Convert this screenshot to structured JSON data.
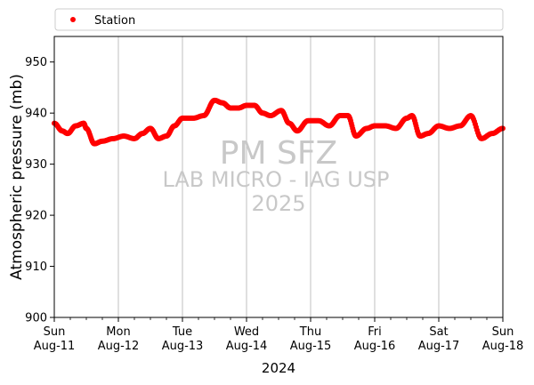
{
  "chart_data": {
    "type": "scatter",
    "title": "",
    "xlabel": "2024",
    "ylabel": "Atmospheric pressure (mb)",
    "ylim": [
      900,
      955
    ],
    "xlim": [
      "2024-08-11",
      "2024-08-18"
    ],
    "grid": "vertical-major",
    "legend": {
      "placement": "top",
      "entries": [
        "Station"
      ]
    },
    "x_ticks": [
      {
        "day": "Sun",
        "date": "Aug-11"
      },
      {
        "day": "Mon",
        "date": "Aug-12"
      },
      {
        "day": "Tue",
        "date": "Aug-13"
      },
      {
        "day": "Wed",
        "date": "Aug-14"
      },
      {
        "day": "Thu",
        "date": "Aug-15"
      },
      {
        "day": "Fri",
        "date": "Aug-16"
      },
      {
        "day": "Sat",
        "date": "Aug-17"
      },
      {
        "day": "Sun",
        "date": "Aug-18"
      }
    ],
    "y_ticks": [
      900,
      910,
      920,
      930,
      940,
      950
    ],
    "series": [
      {
        "name": "Station",
        "color": "#ff0000",
        "points": [
          [
            "2024-08-11 00:00",
            938.0
          ],
          [
            "2024-08-11 03:00",
            936.5
          ],
          [
            "2024-08-11 05:00",
            936.0
          ],
          [
            "2024-08-11 08:00",
            937.5
          ],
          [
            "2024-08-11 11:00",
            938.0
          ],
          [
            "2024-08-11 12:00",
            937.0
          ],
          [
            "2024-08-11 15:00",
            934.0
          ],
          [
            "2024-08-11 18:00",
            934.5
          ],
          [
            "2024-08-11 22:00",
            935.0
          ],
          [
            "2024-08-12 02:00",
            935.5
          ],
          [
            "2024-08-12 06:00",
            935.0
          ],
          [
            "2024-08-12 09:00",
            936.0
          ],
          [
            "2024-08-12 12:00",
            937.0
          ],
          [
            "2024-08-12 15:00",
            935.0
          ],
          [
            "2024-08-12 18:00",
            935.5
          ],
          [
            "2024-08-12 21:00",
            937.5
          ],
          [
            "2024-08-13 00:00",
            939.0
          ],
          [
            "2024-08-13 04:00",
            939.0
          ],
          [
            "2024-08-13 08:00",
            939.5
          ],
          [
            "2024-08-13 12:00",
            942.5
          ],
          [
            "2024-08-13 15:00",
            942.0
          ],
          [
            "2024-08-13 18:00",
            941.0
          ],
          [
            "2024-08-13 21:00",
            941.0
          ],
          [
            "2024-08-14 00:00",
            941.5
          ],
          [
            "2024-08-14 03:00",
            941.5
          ],
          [
            "2024-08-14 06:00",
            940.0
          ],
          [
            "2024-08-14 09:00",
            939.5
          ],
          [
            "2024-08-14 13:00",
            940.5
          ],
          [
            "2024-08-14 16:00",
            938.0
          ],
          [
            "2024-08-14 19:00",
            936.5
          ],
          [
            "2024-08-14 23:00",
            938.5
          ],
          [
            "2024-08-15 03:00",
            938.5
          ],
          [
            "2024-08-15 07:00",
            937.5
          ],
          [
            "2024-08-15 11:00",
            939.5
          ],
          [
            "2024-08-15 14:00",
            939.5
          ],
          [
            "2024-08-15 17:00",
            935.5
          ],
          [
            "2024-08-15 21:00",
            937.0
          ],
          [
            "2024-08-16 00:00",
            937.5
          ],
          [
            "2024-08-16 04:00",
            937.5
          ],
          [
            "2024-08-16 08:00",
            937.0
          ],
          [
            "2024-08-16 12:00",
            939.0
          ],
          [
            "2024-08-16 14:00",
            939.5
          ],
          [
            "2024-08-16 17:00",
            935.5
          ],
          [
            "2024-08-16 20:00",
            936.0
          ],
          [
            "2024-08-17 00:00",
            937.5
          ],
          [
            "2024-08-17 04:00",
            937.0
          ],
          [
            "2024-08-17 08:00",
            937.5
          ],
          [
            "2024-08-17 12:00",
            939.5
          ],
          [
            "2024-08-17 16:00",
            935.0
          ],
          [
            "2024-08-17 20:00",
            936.0
          ],
          [
            "2024-08-18 00:00",
            937.0
          ]
        ]
      }
    ],
    "watermark": [
      "PM SFZ",
      "LAB MICRO - IAG USP",
      "2025"
    ]
  }
}
